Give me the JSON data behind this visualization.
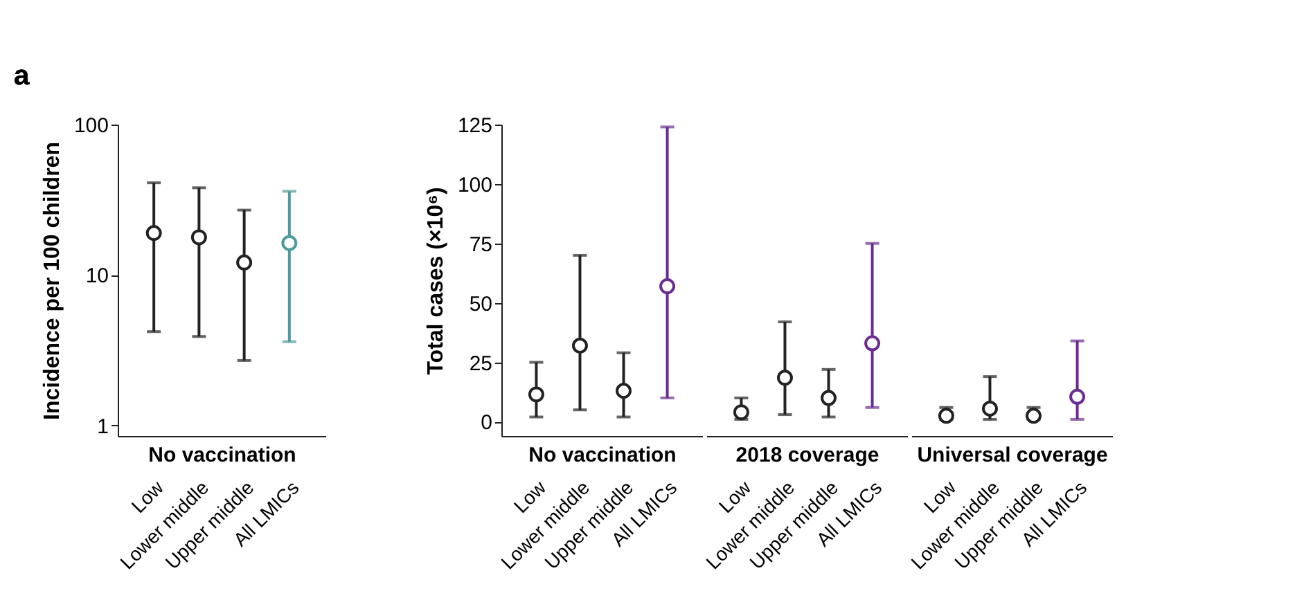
{
  "chart_data": [
    {
      "type": "scatter",
      "annotations": [
        "a"
      ],
      "ylabel": "Incidence per 100 children",
      "xlabel": "No vaccination",
      "log": true,
      "ylim": [
        0.85,
        100
      ],
      "yticks": [
        1,
        10,
        100
      ],
      "grid": false,
      "marker": "circle",
      "categories": [
        "Low",
        "Lower middle",
        "Upper middle",
        "All LMICs"
      ],
      "values": [
        19,
        17.8,
        12.1,
        16.3
      ],
      "errors": [
        [
          4.2,
          41
        ],
        [
          3.9,
          38
        ],
        [
          2.7,
          27
        ],
        [
          3.6,
          36
        ]
      ],
      "colors": [
        "#222222",
        "#222222",
        "#222222",
        "#4e9a9a"
      ]
    },
    {
      "type": "scatter",
      "ylabel": "Total cases (×10⁶)",
      "xlabel": "No vaccination",
      "ylim": [
        -6,
        125
      ],
      "yticks": [
        0,
        25,
        50,
        75,
        100,
        125
      ],
      "grid": false,
      "marker": "circle",
      "categories": [
        "Low",
        "Lower middle",
        "Upper middle",
        "All LMICs"
      ],
      "values": [
        11.5,
        32,
        13,
        57
      ],
      "errors": [
        [
          2,
          25
        ],
        [
          5,
          70
        ],
        [
          2,
          29
        ],
        [
          10,
          124
        ]
      ],
      "colors": [
        "#222222",
        "#222222",
        "#222222",
        "#6a2c91"
      ]
    },
    {
      "type": "scatter",
      "xlabel": "2018 coverage",
      "ylim": [
        -6,
        125
      ],
      "tick_labels": "x",
      "grid": false,
      "marker": "circle",
      "categories": [
        "Low",
        "Lower middle",
        "Upper middle",
        "All LMICs"
      ],
      "values": [
        4,
        18.5,
        10,
        33
      ],
      "errors": [
        [
          1,
          10
        ],
        [
          3,
          42
        ],
        [
          2,
          22
        ],
        [
          6,
          75
        ]
      ],
      "colors": [
        "#222222",
        "#222222",
        "#222222",
        "#6a2c91"
      ]
    },
    {
      "type": "scatter",
      "xlabel": "Universal coverage",
      "ylim": [
        -6,
        125
      ],
      "tick_labels": "x",
      "grid": false,
      "marker": "circle",
      "categories": [
        "Low",
        "Lower middle",
        "Upper middle",
        "All LMICs"
      ],
      "values": [
        2.5,
        5.5,
        2.5,
        10.5
      ],
      "errors": [
        [
          1,
          6
        ],
        [
          1,
          19
        ],
        [
          1,
          6
        ],
        [
          1,
          34
        ]
      ],
      "colors": [
        "#222222",
        "#222222",
        "#222222",
        "#6a2c91"
      ]
    }
  ]
}
